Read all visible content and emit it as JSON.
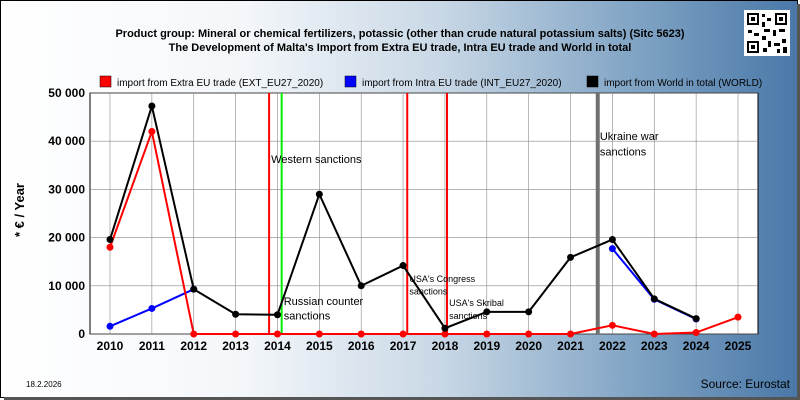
{
  "title_line1": "Product group: Mineral or chemical fertilizers, potassic (other than crude natural potassium salts) (Sitc 5623)",
  "title_line2": "The Development of Malta's Import from Extra EU trade, Intra EU trade and World in total",
  "date": "18.2.2026",
  "source": "Source: Eurostat",
  "qr_icon": "qr-code-icon",
  "chart_data": {
    "type": "line",
    "ylabel": "* € / Year",
    "ylim": [
      0,
      50000
    ],
    "yticks": [
      0,
      10000,
      20000,
      30000,
      40000,
      50000
    ],
    "ytick_labels": [
      "0",
      "10 000",
      "20 000",
      "30 000",
      "40 000",
      "50 000"
    ],
    "xlim": [
      2010,
      2025
    ],
    "categories": [
      "2010",
      "2011",
      "2012",
      "2013",
      "2014",
      "2015",
      "2016",
      "2017",
      "2018",
      "2019",
      "2020",
      "2021",
      "2022",
      "2023",
      "2024",
      "2025"
    ],
    "grid": true,
    "legend_position": "top",
    "series": [
      {
        "name": "import from Extra EU trade (EXT_EU27_2020)",
        "color": "#ff0000",
        "values": [
          18000,
          42000,
          0,
          0,
          0,
          0,
          0,
          0,
          0,
          0,
          0,
          0,
          1800,
          0,
          300,
          3500
        ]
      },
      {
        "name": "import from Intra EU trade (INT_EU27_2020)",
        "color": "#0000ff",
        "values": [
          1600,
          5300,
          9300,
          null,
          null,
          null,
          null,
          null,
          null,
          null,
          null,
          null,
          17700,
          7200,
          3100,
          null
        ]
      },
      {
        "name": "import from World in total (WORLD)",
        "color": "#000000",
        "values": [
          19600,
          47300,
          9300,
          4100,
          4000,
          29000,
          10000,
          14200,
          1200,
          4600,
          4600,
          15900,
          19600,
          7300,
          3200,
          null
        ]
      }
    ],
    "events": [
      {
        "x": 2013.8,
        "color": "#ff0000",
        "label": ""
      },
      {
        "x": 2014.1,
        "color": "#00ee00",
        "label": ""
      },
      {
        "x": 2017.1,
        "color": "#ff0000",
        "label": ""
      },
      {
        "x": 2018.05,
        "color": "#ff0000",
        "label": ""
      },
      {
        "x": 2021.65,
        "color": "#707070",
        "label": ""
      }
    ],
    "annotations": [
      {
        "text": "Western sanctions",
        "x": 2013.85,
        "y": 35500,
        "small": false
      },
      {
        "text": "Russian counter",
        "x": 2014.15,
        "y": 6000,
        "small": false
      },
      {
        "text": "sanctions",
        "x": 2014.15,
        "y": 3000,
        "small": false
      },
      {
        "text": "USA's Congress",
        "x": 2017.15,
        "y": 10800,
        "small": true
      },
      {
        "text": "sanctions",
        "x": 2017.15,
        "y": 8200,
        "small": true
      },
      {
        "text": "USA's Skribal",
        "x": 2018.1,
        "y": 5800,
        "small": true
      },
      {
        "text": "sanctions",
        "x": 2018.1,
        "y": 3100,
        "small": true
      },
      {
        "text": "Ukraine war",
        "x": 2021.7,
        "y": 40200,
        "small": false
      },
      {
        "text": "sanctions",
        "x": 2021.7,
        "y": 37000,
        "small": false
      }
    ]
  }
}
